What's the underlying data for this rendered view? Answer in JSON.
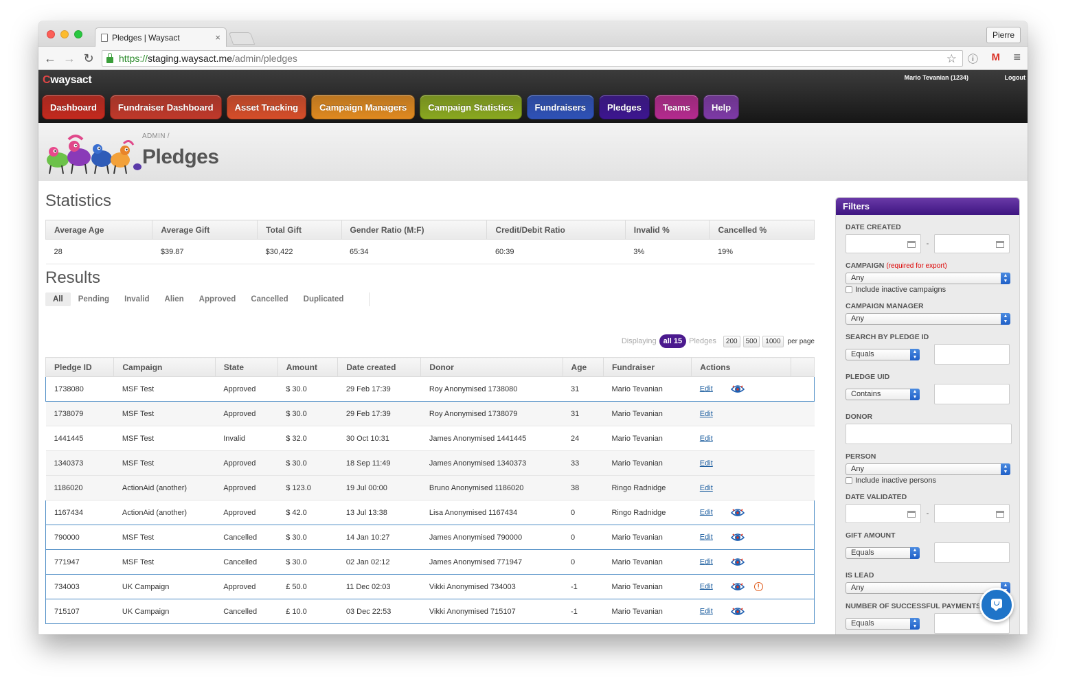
{
  "browser": {
    "tab_title": "Pledges | Waysact",
    "tab_close": "×",
    "profile": "Pierre",
    "url_scheme": "https://",
    "url_host": "staging.waysact.me",
    "url_path": "/admin/pledges",
    "back": "←",
    "forward": "→",
    "reload": "↻",
    "star": "☆",
    "ext_info": "ⓘ",
    "ext_gmail": "M",
    "menu": "≡"
  },
  "app": {
    "logo_c": "C",
    "logo_rest": "waysact",
    "user": "Mario Tevanian (1234)",
    "logout": "Logout",
    "nav": [
      {
        "label": "Dashboard",
        "color": "#c42a1f"
      },
      {
        "label": "Fundraiser Dashboard",
        "color": "#c0392b"
      },
      {
        "label": "Asset Tracking",
        "color": "#d64e2a"
      },
      {
        "label": "Campaign Managers",
        "color": "#e08a20"
      },
      {
        "label": "Campaign Statistics",
        "color": "#8aa820"
      },
      {
        "label": "Fundraisers",
        "color": "#2f52b8"
      },
      {
        "label": "Pledges",
        "color": "#3d1690"
      },
      {
        "label": "Teams",
        "color": "#b52b8f"
      },
      {
        "label": "Help",
        "color": "#7e3aa6"
      }
    ]
  },
  "banner": {
    "breadcrumb": "ADMIN  /",
    "title": "Pledges"
  },
  "statistics": {
    "title": "Statistics",
    "headers": [
      "Average Age",
      "Average Gift",
      "Total Gift",
      "Gender Ratio (M:F)",
      "Credit/Debit Ratio",
      "Invalid %",
      "Cancelled %"
    ],
    "values": [
      "28",
      "$39.87",
      "$30,422",
      "65:34",
      "60:39",
      "3%",
      "19%"
    ]
  },
  "results": {
    "title": "Results",
    "tabs": [
      "All",
      "Pending",
      "Invalid",
      "Alien",
      "Approved",
      "Cancelled",
      "Duplicated"
    ],
    "pager": {
      "displaying": "Displaying",
      "count": "all 15",
      "noun": "Pledges",
      "options": [
        "200",
        "500",
        "1000"
      ],
      "per_page": "per page"
    },
    "headers": [
      "Pledge ID",
      "Campaign",
      "State",
      "Amount",
      "Date created",
      "Donor",
      "Age",
      "Fundraiser",
      "Actions"
    ],
    "edit_label": "Edit",
    "warn_glyph": "!",
    "rows": [
      {
        "id": "1738080",
        "campaign": "MSF Test",
        "state": "Approved",
        "amount": "$ 30.0",
        "date": "29 Feb 17:39",
        "donor": "Roy Anonymised 1738080",
        "age": "31",
        "fundraiser": "Mario Tevanian",
        "hl": true,
        "eye": true,
        "warn": false
      },
      {
        "id": "1738079",
        "campaign": "MSF Test",
        "state": "Approved",
        "amount": "$ 30.0",
        "date": "29 Feb 17:39",
        "donor": "Roy Anonymised 1738079",
        "age": "31",
        "fundraiser": "Mario Tevanian",
        "hl": false,
        "eye": false,
        "warn": false
      },
      {
        "id": "1441445",
        "campaign": "MSF Test",
        "state": "Invalid",
        "amount": "$ 32.0",
        "date": "30 Oct 10:31",
        "donor": "James Anonymised 1441445",
        "age": "24",
        "fundraiser": "Mario Tevanian",
        "hl": false,
        "eye": false,
        "warn": false
      },
      {
        "id": "1340373",
        "campaign": "MSF Test",
        "state": "Approved",
        "amount": "$ 30.0",
        "date": "18 Sep 11:49",
        "donor": "James Anonymised 1340373",
        "age": "33",
        "fundraiser": "Mario Tevanian",
        "hl": false,
        "eye": false,
        "warn": false
      },
      {
        "id": "1186020",
        "campaign": "ActionAid (another)",
        "state": "Approved",
        "amount": "$ 123.0",
        "date": "19 Jul 00:00",
        "donor": "Bruno Anonymised 1186020",
        "age": "38",
        "fundraiser": "Ringo Radnidge",
        "hl": false,
        "eye": false,
        "warn": false
      },
      {
        "id": "1167434",
        "campaign": "ActionAid (another)",
        "state": "Approved",
        "amount": "$ 42.0",
        "date": "13 Jul 13:38",
        "donor": "Lisa Anonymised 1167434",
        "age": "0",
        "fundraiser": "Ringo Radnidge",
        "hl": true,
        "eye": true,
        "warn": false
      },
      {
        "id": "790000",
        "campaign": "MSF Test",
        "state": "Cancelled",
        "amount": "$ 30.0",
        "date": "14 Jan 10:27",
        "donor": "James Anonymised 790000",
        "age": "0",
        "fundraiser": "Mario Tevanian",
        "hl": true,
        "eye": true,
        "warn": false
      },
      {
        "id": "771947",
        "campaign": "MSF Test",
        "state": "Cancelled",
        "amount": "$ 30.0",
        "date": "02 Jan 02:12",
        "donor": "James Anonymised 771947",
        "age": "0",
        "fundraiser": "Mario Tevanian",
        "hl": true,
        "eye": true,
        "warn": false
      },
      {
        "id": "734003",
        "campaign": "UK Campaign",
        "state": "Approved",
        "amount": "£ 50.0",
        "date": "11 Dec 02:03",
        "donor": "Vikki Anonymised 734003",
        "age": "-1",
        "fundraiser": "Mario Tevanian",
        "hl": true,
        "eye": true,
        "warn": true
      },
      {
        "id": "715107",
        "campaign": "UK Campaign",
        "state": "Cancelled",
        "amount": "£ 10.0",
        "date": "03 Dec 22:53",
        "donor": "Vikki Anonymised 715107",
        "age": "-1",
        "fundraiser": "Mario Tevanian",
        "hl": true,
        "eye": true,
        "warn": false
      }
    ]
  },
  "filters": {
    "title": "Filters",
    "date_created": "DATE CREATED",
    "campaign": "CAMPAIGN",
    "campaign_req": "(required for export)",
    "campaign_value": "Any",
    "include_inactive_campaigns": "Include inactive campaigns",
    "campaign_manager": "CAMPAIGN MANAGER",
    "campaign_manager_value": "Any",
    "search_pledge_id": "SEARCH BY PLEDGE ID",
    "search_pledge_id_op": "Equals",
    "pledge_uid": "PLEDGE UID",
    "pledge_uid_op": "Contains",
    "donor": "DONOR",
    "person": "PERSON",
    "person_value": "Any",
    "include_inactive_persons": "Include inactive persons",
    "date_validated": "DATE VALIDATED",
    "gift_amount": "GIFT AMOUNT",
    "gift_amount_op": "Equals",
    "is_lead": "IS LEAD",
    "is_lead_value": "Any",
    "num_payments": "NUMBER OF SUCCESSFUL PAYMENTS",
    "num_payments_op": "Equals",
    "dash": "-"
  }
}
